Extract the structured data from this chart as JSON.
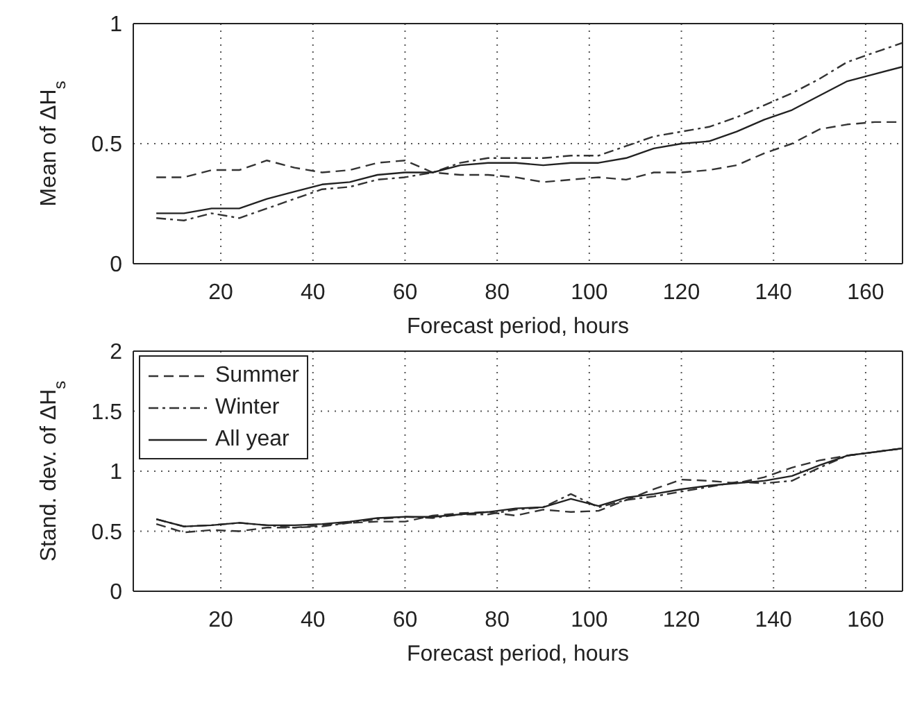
{
  "chart_data": [
    {
      "type": "line",
      "xlabel": "Forecast period, hours",
      "ylabel": "Mean of ΔH$_{s}$",
      "x": [
        6,
        12,
        18,
        24,
        30,
        36,
        42,
        48,
        54,
        60,
        66,
        72,
        78,
        84,
        90,
        96,
        102,
        108,
        114,
        120,
        126,
        132,
        138,
        144,
        150,
        156,
        162,
        168
      ],
      "xlim": [
        1,
        168
      ],
      "xticks": [
        20,
        40,
        60,
        80,
        100,
        120,
        140,
        160
      ],
      "ylim": [
        0,
        1
      ],
      "yticks": [
        0,
        0.5,
        1
      ],
      "grid": true,
      "marker": "none",
      "series": [
        {
          "color": "#333333",
          "line_style": "dashed",
          "values": [
            0.36,
            0.36,
            0.39,
            0.39,
            0.43,
            0.4,
            0.38,
            0.39,
            0.42,
            0.43,
            0.38,
            0.37,
            0.37,
            0.36,
            0.34,
            0.35,
            0.36,
            0.35,
            0.38,
            0.38,
            0.39,
            0.41,
            0.46,
            0.5,
            0.56,
            0.58,
            0.59,
            0.59
          ]
        },
        {
          "color": "#333333",
          "line_style": "dashdot",
          "values": [
            0.19,
            0.18,
            0.21,
            0.19,
            0.23,
            0.27,
            0.31,
            0.32,
            0.35,
            0.36,
            0.38,
            0.42,
            0.44,
            0.44,
            0.44,
            0.45,
            0.45,
            0.49,
            0.53,
            0.55,
            0.57,
            0.61,
            0.66,
            0.71,
            0.77,
            0.84,
            0.88,
            0.92
          ]
        },
        {
          "color": "#222222",
          "line_style": "solid",
          "values": [
            0.21,
            0.21,
            0.23,
            0.23,
            0.27,
            0.3,
            0.33,
            0.34,
            0.37,
            0.38,
            0.38,
            0.41,
            0.42,
            0.42,
            0.41,
            0.42,
            0.42,
            0.44,
            0.48,
            0.5,
            0.51,
            0.55,
            0.6,
            0.64,
            0.7,
            0.76,
            0.79,
            0.82
          ]
        }
      ]
    },
    {
      "type": "line",
      "xlabel": "Forecast period, hours",
      "ylabel": "Stand. dev. of ΔH$_{s}$",
      "x": [
        6,
        12,
        18,
        24,
        30,
        36,
        42,
        48,
        54,
        60,
        66,
        72,
        78,
        84,
        90,
        96,
        102,
        108,
        114,
        120,
        126,
        132,
        138,
        144,
        150,
        156,
        162,
        168
      ],
      "xlim": [
        1,
        168
      ],
      "xticks": [
        20,
        40,
        60,
        80,
        100,
        120,
        140,
        160
      ],
      "ylim": [
        0,
        2
      ],
      "yticks": [
        0,
        0.5,
        1,
        1.5,
        2
      ],
      "grid": true,
      "legend": "top left",
      "marker": "none",
      "series": [
        {
          "name": "Summer",
          "color": "#333333",
          "line_style": "dashed",
          "values": [
            0.56,
            0.49,
            0.51,
            0.5,
            0.53,
            0.53,
            0.55,
            0.57,
            0.58,
            0.58,
            0.63,
            0.65,
            0.66,
            0.63,
            0.68,
            0.66,
            0.67,
            0.76,
            0.85,
            0.93,
            0.92,
            0.9,
            0.95,
            1.03,
            1.09,
            1.13,
            1.16,
            1.19
          ]
        },
        {
          "name": "Winter",
          "color": "#333333",
          "line_style": "dashdot",
          "values": [
            0.6,
            0.54,
            0.55,
            0.57,
            0.55,
            0.53,
            0.54,
            0.57,
            0.6,
            0.62,
            0.61,
            0.64,
            0.64,
            0.68,
            0.7,
            0.81,
            0.7,
            0.76,
            0.79,
            0.83,
            0.87,
            0.91,
            0.9,
            0.92,
            1.03,
            1.13,
            1.16,
            1.19
          ]
        },
        {
          "name": "All year",
          "color": "#222222",
          "line_style": "solid",
          "values": [
            0.6,
            0.54,
            0.55,
            0.57,
            0.55,
            0.55,
            0.56,
            0.58,
            0.61,
            0.62,
            0.62,
            0.64,
            0.66,
            0.69,
            0.7,
            0.77,
            0.71,
            0.78,
            0.81,
            0.85,
            0.88,
            0.9,
            0.92,
            0.96,
            1.05,
            1.13,
            1.16,
            1.19
          ]
        }
      ]
    }
  ]
}
